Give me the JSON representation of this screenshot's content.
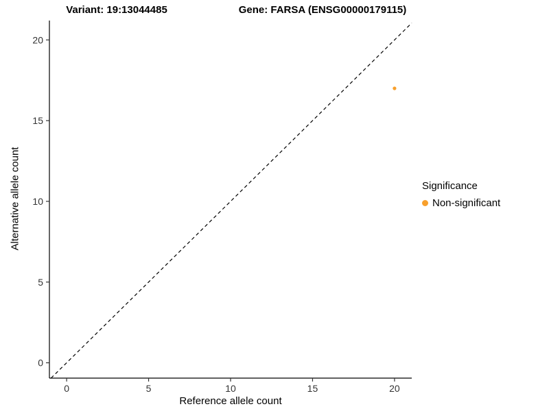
{
  "titles": {
    "left": "Variant: 19:13044485",
    "right": "Gene: FARSA (ENSG00000179115)"
  },
  "legend": {
    "title": "Significance",
    "entries": [
      {
        "label": "Non-significant",
        "color": "#F8A02C"
      }
    ]
  },
  "chart_data": {
    "type": "scatter",
    "title_left": "Variant: 19:13044485",
    "title_right": "Gene: FARSA (ENSG00000179115)",
    "xlabel": "Reference allele count",
    "ylabel": "Alternative allele count",
    "xlim": [
      -1.05,
      21.05
    ],
    "ylim": [
      -0.95,
      21.2
    ],
    "xticks": [
      0,
      5,
      10,
      15,
      20
    ],
    "yticks": [
      0,
      5,
      10,
      15,
      20
    ],
    "grid": false,
    "legend_position": "right",
    "points": [
      {
        "x": 20,
        "y": 17,
        "series": "Non-significant",
        "color": "#F8A02C",
        "radius": 2.6
      }
    ],
    "reference_line": {
      "type": "identity",
      "slope": 1,
      "intercept": 0,
      "style": "dashed",
      "color": "#000000"
    }
  }
}
